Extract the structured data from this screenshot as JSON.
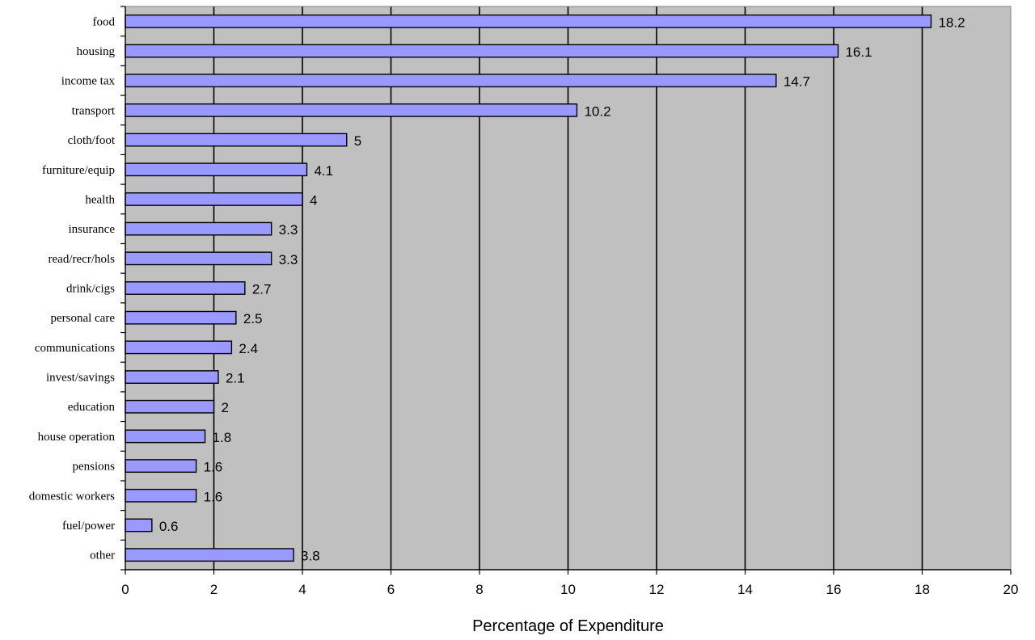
{
  "chart_data": {
    "type": "bar",
    "orientation": "horizontal",
    "title": "",
    "xlabel": "Percentage of Expenditure",
    "ylabel": "",
    "xlim": [
      0,
      20
    ],
    "x_ticks": [
      0,
      2,
      4,
      6,
      8,
      10,
      12,
      14,
      16,
      18,
      20
    ],
    "grid": "vertical",
    "legend": "none",
    "categories": [
      "food",
      "housing",
      "income tax",
      "transport",
      "cloth/foot",
      "furniture/equip",
      "health",
      "insurance",
      "read/recr/hols",
      "drink/cigs",
      "personal care",
      "communications",
      "invest/savings",
      "education",
      "house operation",
      "pensions",
      "domestic workers",
      "fuel/power",
      "other"
    ],
    "values": [
      18.2,
      16.1,
      14.7,
      10.2,
      5,
      4.1,
      4,
      3.3,
      3.3,
      2.7,
      2.5,
      2.4,
      2.1,
      2,
      1.8,
      1.6,
      1.6,
      0.6,
      3.8
    ],
    "colors": {
      "bar_fill": "#9999ff",
      "bar_stroke": "#000000",
      "plot_background": "#c0c0c0",
      "gridline": "#000000"
    }
  }
}
